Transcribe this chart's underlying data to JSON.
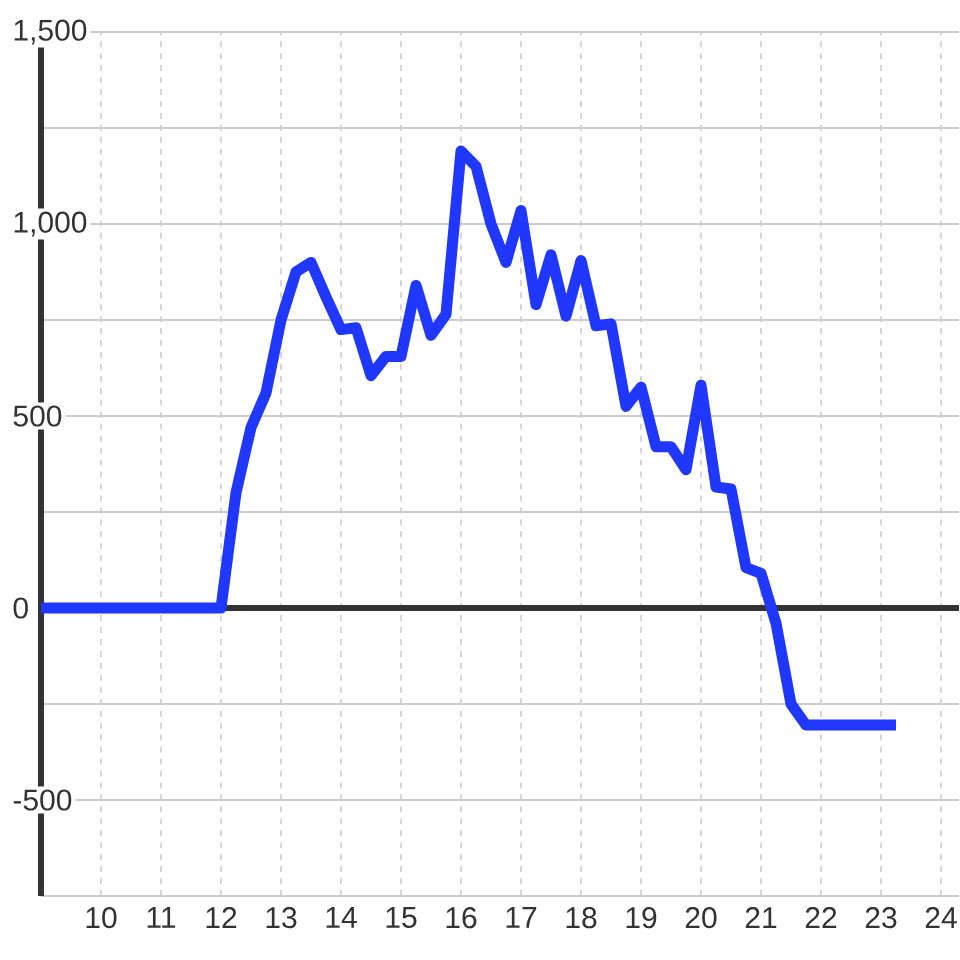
{
  "chart_data": {
    "type": "line",
    "x": [
      9,
      9.25,
      9.5,
      9.75,
      10,
      10.25,
      10.5,
      10.75,
      11,
      11.25,
      11.5,
      11.75,
      12,
      12.25,
      12.5,
      12.75,
      13,
      13.25,
      13.5,
      13.75,
      14,
      14.25,
      14.5,
      14.75,
      15,
      15.25,
      15.5,
      15.75,
      16,
      16.25,
      16.5,
      16.75,
      17,
      17.25,
      17.5,
      17.75,
      18,
      18.25,
      18.5,
      18.75,
      19,
      19.25,
      19.5,
      19.75,
      20,
      20.25,
      20.5,
      20.75,
      21,
      21.25,
      21.5,
      21.75,
      22,
      22.25,
      22.5,
      22.75,
      23,
      23.25
    ],
    "values": [
      0,
      0,
      0,
      0,
      0,
      0,
      0,
      0,
      0,
      0,
      0,
      0,
      0,
      300,
      470,
      560,
      750,
      875,
      900,
      810,
      725,
      730,
      605,
      655,
      655,
      840,
      710,
      765,
      1190,
      1150,
      1000,
      900,
      1035,
      790,
      920,
      760,
      905,
      735,
      740,
      525,
      575,
      420,
      420,
      360,
      580,
      315,
      310,
      105,
      90,
      -40,
      -250,
      -305,
      -305,
      -305,
      -305,
      -305,
      -305,
      -305
    ],
    "color": "#1f37ff",
    "xlim": [
      9,
      24.3
    ],
    "xticks": [
      10,
      11,
      12,
      13,
      14,
      15,
      16,
      17,
      18,
      19,
      20,
      21,
      22,
      23,
      24
    ],
    "ylim": [
      -750,
      1500
    ],
    "yticks": [
      {
        "value": -750,
        "label": null
      },
      -500,
      {
        "value": -250,
        "label": null
      },
      0,
      {
        "value": 250,
        "label": null
      },
      500,
      {
        "value": 750,
        "label": null
      },
      {
        "value": 1000,
        "label": "1,000"
      },
      {
        "value": 1250,
        "label": null
      },
      {
        "value": 1500,
        "label": "1,500"
      }
    ],
    "ref_lines": [
      {
        "axis": "y",
        "value": 0,
        "color": "#333333"
      }
    ],
    "grid": true,
    "marker": "none",
    "line_style": "solid"
  }
}
